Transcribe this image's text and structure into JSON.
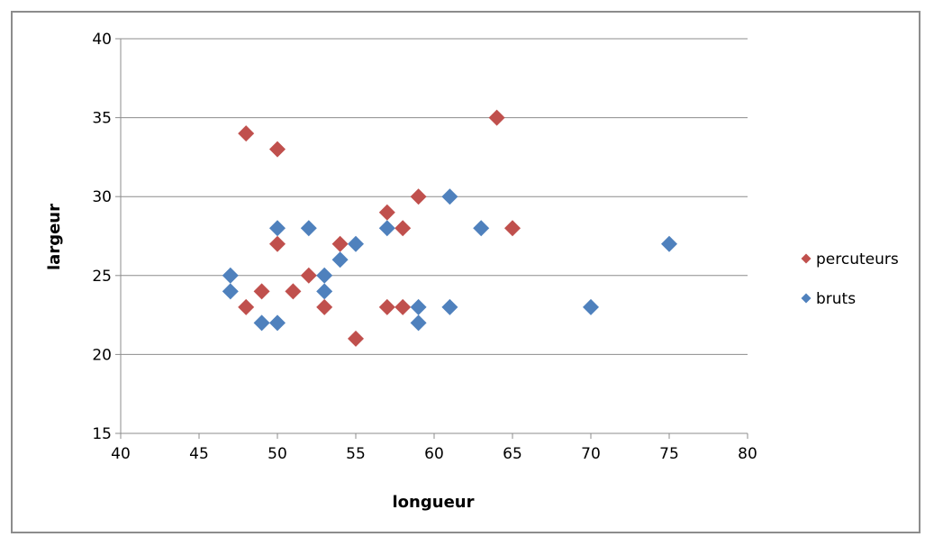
{
  "chart_data": {
    "type": "scatter",
    "title": "",
    "xlabel": "longueur",
    "ylabel": "largeur",
    "xlim": [
      40,
      80
    ],
    "ylim": [
      15,
      40
    ],
    "x_ticks": [
      40,
      45,
      50,
      55,
      60,
      65,
      70,
      75,
      80
    ],
    "y_ticks": [
      15,
      20,
      25,
      30,
      35,
      40
    ],
    "grid": "horizontal",
    "legend_position": "right",
    "series": [
      {
        "name": "percuteurs",
        "color": "#c0504d",
        "marker": "diamond",
        "points": [
          [
            48,
            34
          ],
          [
            50,
            33
          ],
          [
            64,
            35
          ],
          [
            59,
            30
          ],
          [
            57,
            29
          ],
          [
            58,
            28
          ],
          [
            65,
            28
          ],
          [
            50,
            27
          ],
          [
            54,
            27
          ],
          [
            52,
            25
          ],
          [
            48,
            23
          ],
          [
            49,
            24
          ],
          [
            51,
            24
          ],
          [
            53,
            23
          ],
          [
            55,
            21
          ],
          [
            57,
            23
          ],
          [
            58,
            23
          ]
        ]
      },
      {
        "name": "bruts",
        "color": "#4f81bd",
        "marker": "diamond",
        "points": [
          [
            47,
            25
          ],
          [
            47,
            24
          ],
          [
            49,
            22
          ],
          [
            50,
            22
          ],
          [
            50,
            28
          ],
          [
            52,
            28
          ],
          [
            53,
            25
          ],
          [
            53,
            24
          ],
          [
            54,
            26
          ],
          [
            55,
            27
          ],
          [
            57,
            28
          ],
          [
            59,
            23
          ],
          [
            59,
            22
          ],
          [
            61,
            30
          ],
          [
            61,
            23
          ],
          [
            63,
            28
          ],
          [
            70,
            23
          ],
          [
            75,
            27
          ]
        ]
      }
    ]
  }
}
